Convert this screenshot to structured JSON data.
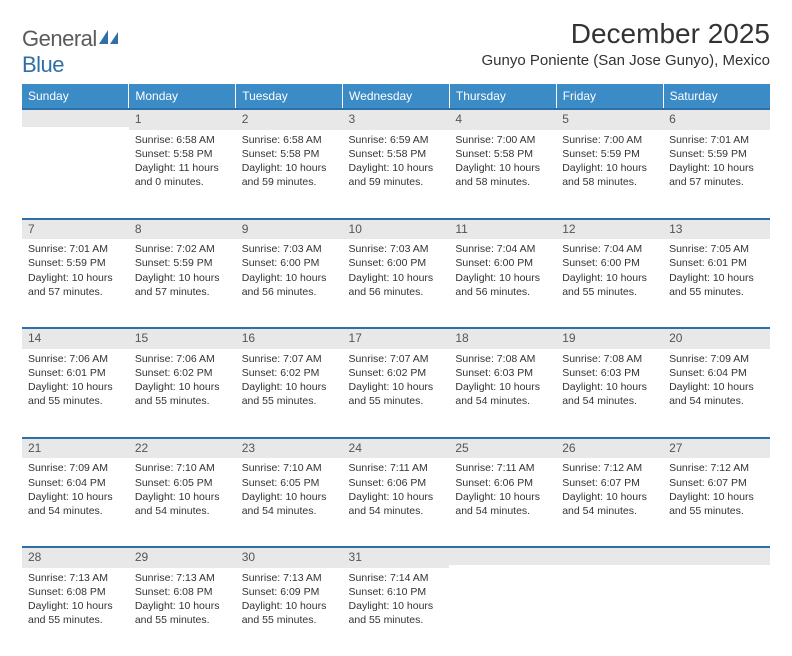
{
  "logo": {
    "text1": "General",
    "text2": "Blue"
  },
  "title": "December 2025",
  "location": "Gunyo Poniente (San Jose Gunyo), Mexico",
  "colors": {
    "header_bg": "#3b8bc6",
    "header_text": "#ffffff",
    "daynum_bg": "#e8e8e8",
    "daynum_border": "#2f6fa8",
    "body_text": "#333333",
    "logo_gray": "#5a5a5a",
    "logo_blue": "#2f6fa8"
  },
  "days_of_week": [
    "Sunday",
    "Monday",
    "Tuesday",
    "Wednesday",
    "Thursday",
    "Friday",
    "Saturday"
  ],
  "weeks": [
    [
      null,
      {
        "n": "1",
        "sr": "6:58 AM",
        "ss": "5:58 PM",
        "dl": "11 hours and 0 minutes."
      },
      {
        "n": "2",
        "sr": "6:58 AM",
        "ss": "5:58 PM",
        "dl": "10 hours and 59 minutes."
      },
      {
        "n": "3",
        "sr": "6:59 AM",
        "ss": "5:58 PM",
        "dl": "10 hours and 59 minutes."
      },
      {
        "n": "4",
        "sr": "7:00 AM",
        "ss": "5:58 PM",
        "dl": "10 hours and 58 minutes."
      },
      {
        "n": "5",
        "sr": "7:00 AM",
        "ss": "5:59 PM",
        "dl": "10 hours and 58 minutes."
      },
      {
        "n": "6",
        "sr": "7:01 AM",
        "ss": "5:59 PM",
        "dl": "10 hours and 57 minutes."
      }
    ],
    [
      {
        "n": "7",
        "sr": "7:01 AM",
        "ss": "5:59 PM",
        "dl": "10 hours and 57 minutes."
      },
      {
        "n": "8",
        "sr": "7:02 AM",
        "ss": "5:59 PM",
        "dl": "10 hours and 57 minutes."
      },
      {
        "n": "9",
        "sr": "7:03 AM",
        "ss": "6:00 PM",
        "dl": "10 hours and 56 minutes."
      },
      {
        "n": "10",
        "sr": "7:03 AM",
        "ss": "6:00 PM",
        "dl": "10 hours and 56 minutes."
      },
      {
        "n": "11",
        "sr": "7:04 AM",
        "ss": "6:00 PM",
        "dl": "10 hours and 56 minutes."
      },
      {
        "n": "12",
        "sr": "7:04 AM",
        "ss": "6:00 PM",
        "dl": "10 hours and 55 minutes."
      },
      {
        "n": "13",
        "sr": "7:05 AM",
        "ss": "6:01 PM",
        "dl": "10 hours and 55 minutes."
      }
    ],
    [
      {
        "n": "14",
        "sr": "7:06 AM",
        "ss": "6:01 PM",
        "dl": "10 hours and 55 minutes."
      },
      {
        "n": "15",
        "sr": "7:06 AM",
        "ss": "6:02 PM",
        "dl": "10 hours and 55 minutes."
      },
      {
        "n": "16",
        "sr": "7:07 AM",
        "ss": "6:02 PM",
        "dl": "10 hours and 55 minutes."
      },
      {
        "n": "17",
        "sr": "7:07 AM",
        "ss": "6:02 PM",
        "dl": "10 hours and 55 minutes."
      },
      {
        "n": "18",
        "sr": "7:08 AM",
        "ss": "6:03 PM",
        "dl": "10 hours and 54 minutes."
      },
      {
        "n": "19",
        "sr": "7:08 AM",
        "ss": "6:03 PM",
        "dl": "10 hours and 54 minutes."
      },
      {
        "n": "20",
        "sr": "7:09 AM",
        "ss": "6:04 PM",
        "dl": "10 hours and 54 minutes."
      }
    ],
    [
      {
        "n": "21",
        "sr": "7:09 AM",
        "ss": "6:04 PM",
        "dl": "10 hours and 54 minutes."
      },
      {
        "n": "22",
        "sr": "7:10 AM",
        "ss": "6:05 PM",
        "dl": "10 hours and 54 minutes."
      },
      {
        "n": "23",
        "sr": "7:10 AM",
        "ss": "6:05 PM",
        "dl": "10 hours and 54 minutes."
      },
      {
        "n": "24",
        "sr": "7:11 AM",
        "ss": "6:06 PM",
        "dl": "10 hours and 54 minutes."
      },
      {
        "n": "25",
        "sr": "7:11 AM",
        "ss": "6:06 PM",
        "dl": "10 hours and 54 minutes."
      },
      {
        "n": "26",
        "sr": "7:12 AM",
        "ss": "6:07 PM",
        "dl": "10 hours and 54 minutes."
      },
      {
        "n": "27",
        "sr": "7:12 AM",
        "ss": "6:07 PM",
        "dl": "10 hours and 55 minutes."
      }
    ],
    [
      {
        "n": "28",
        "sr": "7:13 AM",
        "ss": "6:08 PM",
        "dl": "10 hours and 55 minutes."
      },
      {
        "n": "29",
        "sr": "7:13 AM",
        "ss": "6:08 PM",
        "dl": "10 hours and 55 minutes."
      },
      {
        "n": "30",
        "sr": "7:13 AM",
        "ss": "6:09 PM",
        "dl": "10 hours and 55 minutes."
      },
      {
        "n": "31",
        "sr": "7:14 AM",
        "ss": "6:10 PM",
        "dl": "10 hours and 55 minutes."
      },
      null,
      null,
      null
    ]
  ],
  "labels": {
    "sunrise": "Sunrise:",
    "sunset": "Sunset:",
    "daylight": "Daylight:"
  }
}
